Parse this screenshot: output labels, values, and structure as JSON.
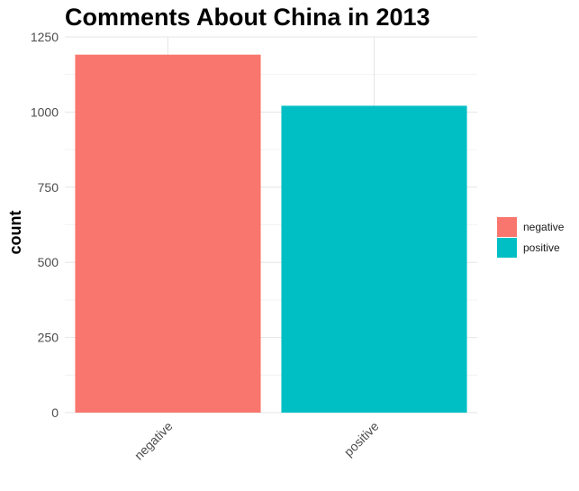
{
  "chart_data": {
    "type": "bar",
    "title": "Comments About China in 2013",
    "xlabel": "",
    "ylabel": "count",
    "categories": [
      "negative",
      "positive"
    ],
    "values": [
      1191,
      1021
    ],
    "colors": [
      "#F8766D",
      "#00BFC4"
    ],
    "ylim": [
      0,
      1250
    ],
    "yticks": [
      0,
      250,
      500,
      750,
      1000,
      1250
    ],
    "grid": true,
    "legend": {
      "position": "right",
      "entries": [
        {
          "label": "negative",
          "color": "#F8766D"
        },
        {
          "label": "positive",
          "color": "#00BFC4"
        }
      ]
    }
  }
}
